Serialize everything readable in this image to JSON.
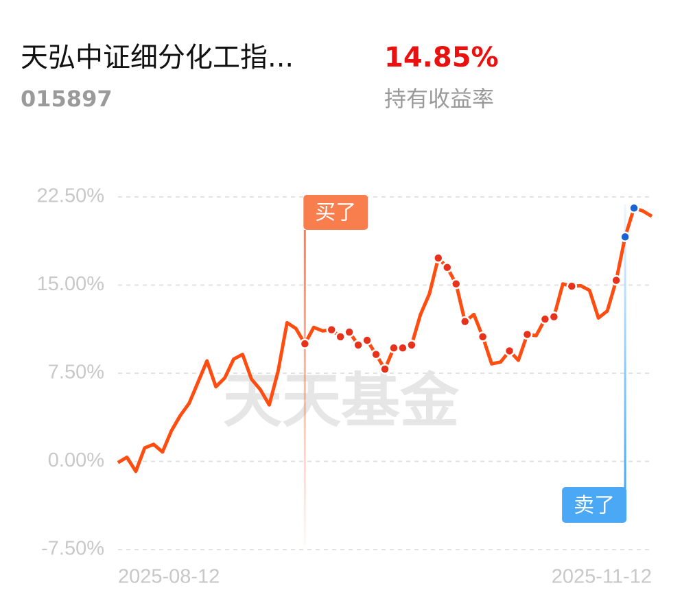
{
  "header": {
    "name": "天弘中证细分化工指...",
    "code": "015897",
    "return": "14.85%",
    "return_label": "持有收益率"
  },
  "chart_data": {
    "type": "line",
    "watermark": "天天基金",
    "categories": [
      "2025-08-12",
      null,
      null,
      null,
      null,
      null,
      null,
      null,
      null,
      null,
      null,
      null,
      null,
      null,
      null,
      null,
      null,
      null,
      null,
      null,
      null,
      null,
      null,
      null,
      null,
      null,
      null,
      null,
      null,
      null,
      null,
      null,
      null,
      null,
      null,
      null,
      null,
      null,
      null,
      null,
      null,
      null,
      null,
      null,
      null,
      null,
      null,
      null,
      null,
      null,
      null,
      null,
      null,
      null,
      null,
      null,
      null,
      null,
      null,
      null,
      "2025-11-12"
    ],
    "series": [
      {
        "color": "#ff4d12",
        "values": [
          -0.1,
          0.35,
          -0.85,
          1.15,
          1.45,
          0.8,
          2.6,
          3.9,
          4.95,
          6.75,
          8.55,
          6.35,
          7.1,
          8.7,
          9.1,
          7.0,
          6.1,
          4.8,
          7.7,
          11.8,
          11.3,
          10.0,
          11.4,
          11.1,
          11.2,
          10.6,
          11.0,
          9.9,
          10.3,
          9.1,
          7.85,
          9.65,
          9.65,
          9.9,
          12.5,
          14.25,
          17.3,
          16.5,
          15.1,
          11.9,
          12.5,
          10.6,
          8.3,
          8.45,
          9.4,
          8.6,
          10.8,
          10.7,
          12.1,
          12.3,
          15.1,
          14.9,
          14.95,
          14.55,
          12.2,
          12.8,
          15.4,
          19.1,
          21.55,
          21.3,
          20.85
        ]
      }
    ],
    "dot_colors": [
      null,
      null,
      null,
      null,
      null,
      null,
      null,
      null,
      null,
      null,
      null,
      null,
      null,
      null,
      null,
      null,
      null,
      null,
      null,
      null,
      null,
      "#e8311a",
      null,
      null,
      "#e8311a",
      "#e8311a",
      "#e8311a",
      "#e8311a",
      "#e8311a",
      "#e8311a",
      "#e8311a",
      "#e8311a",
      "#e8311a",
      "#e8311a",
      null,
      null,
      "#e8311a",
      "#e8311a",
      "#e8311a",
      "#e8311a",
      null,
      "#e8311a",
      null,
      null,
      "#e8311a",
      null,
      "#e8311a",
      null,
      "#e8311a",
      "#e8311a",
      null,
      "#e8311a",
      null,
      null,
      null,
      null,
      "#e8311a",
      "#1a62d6",
      "#1a62d6",
      null,
      null
    ],
    "buy": {
      "label": "买了",
      "color": "#f97e4e"
    },
    "sell": {
      "label": "卖了",
      "color": "#4aa8f5"
    },
    "ylim": [
      -7.5,
      22.5
    ],
    "yticks": [
      {
        "value": -7.5,
        "label": "-7.50%"
      },
      {
        "value": 0,
        "label": "0.00%"
      },
      {
        "value": 7.5,
        "label": "7.50%"
      },
      {
        "value": 15,
        "label": "15.00%"
      },
      {
        "value": 22.5,
        "label": "22.50%"
      }
    ],
    "grid": true
  }
}
